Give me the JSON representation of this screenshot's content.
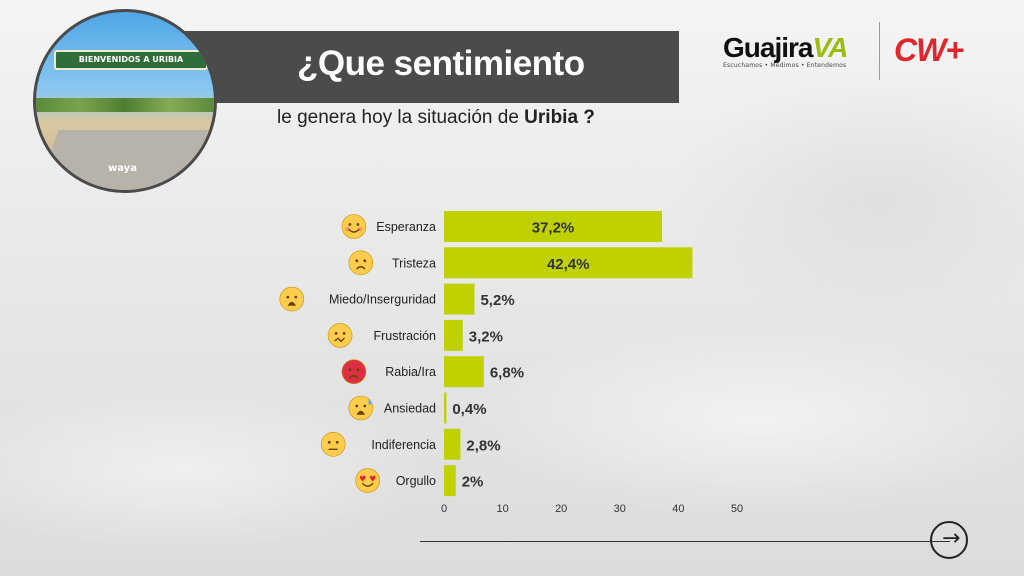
{
  "header": {
    "title": "¿Que sentimiento",
    "subtitle_prefix": "le genera hoy la situación de",
    "subtitle_emphasis": "Uribia ?"
  },
  "photo": {
    "sign_text": "BIENVENIDOS A URIBIA",
    "watermark": "waya"
  },
  "logos": {
    "guajira_name": "Guajira",
    "guajira_suffix": "VA",
    "guajira_tagline": "Escuchamos • Medimos • Entendemos",
    "cw_name": "CW+"
  },
  "colors": {
    "bar": "#bfd100",
    "title_bar": "#4b4b4b",
    "label_text": "#222222",
    "value_text": "#333333",
    "brand_red": "#e0262c",
    "brand_green": "#9bbd10"
  },
  "chart_data": {
    "type": "bar",
    "orientation": "horizontal",
    "categories": [
      "Esperanza",
      "Tristeza",
      "Miedo/Inserguridad",
      "Frustración",
      "Rabia/Ira",
      "Ansiedad",
      "Indiferencia",
      "Orgullo"
    ],
    "icons": [
      "smiling-face-icon",
      "pensive-face-icon",
      "worried-face-icon",
      "confounded-face-icon",
      "angry-face-icon",
      "anxious-face-icon",
      "neutral-face-icon",
      "heart-eyes-face-icon"
    ],
    "values": [
      37.2,
      42.4,
      5.2,
      3.2,
      6.8,
      0.4,
      2.8,
      2
    ],
    "value_labels": [
      "37,2%",
      "42,4%",
      "5,2%",
      "3,2%",
      "6,8%",
      "0,4%",
      "2,8%",
      "2%"
    ],
    "xlim": [
      0,
      50
    ],
    "xticks": [
      0,
      10,
      20,
      30,
      40,
      50
    ],
    "grid": false,
    "legend": "none"
  },
  "nav": {
    "next_icon": "arrow-right-icon"
  }
}
